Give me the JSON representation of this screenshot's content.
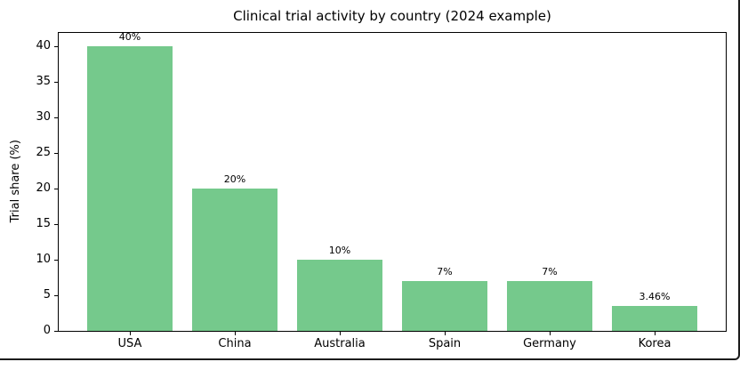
{
  "chart_data": {
    "type": "bar",
    "title": "Clinical trial activity by country (2024 example)",
    "ylabel": "Trial share (%)",
    "xlabel": "",
    "categories": [
      "USA",
      "China",
      "Australia",
      "Spain",
      "Germany",
      "Korea"
    ],
    "values": [
      40,
      20,
      10,
      7,
      7,
      3.46
    ],
    "bar_labels": [
      "40%",
      "20%",
      "10%",
      "7%",
      "7%",
      "3.46%"
    ],
    "yticks": [
      0,
      5,
      10,
      15,
      20,
      25,
      30,
      35,
      40
    ],
    "ylim": [
      0,
      42
    ],
    "grid": false,
    "legend": null,
    "bar_color": "#75c98c",
    "spine_color": "#000000",
    "frame_border_color": "#1c1c1c"
  }
}
